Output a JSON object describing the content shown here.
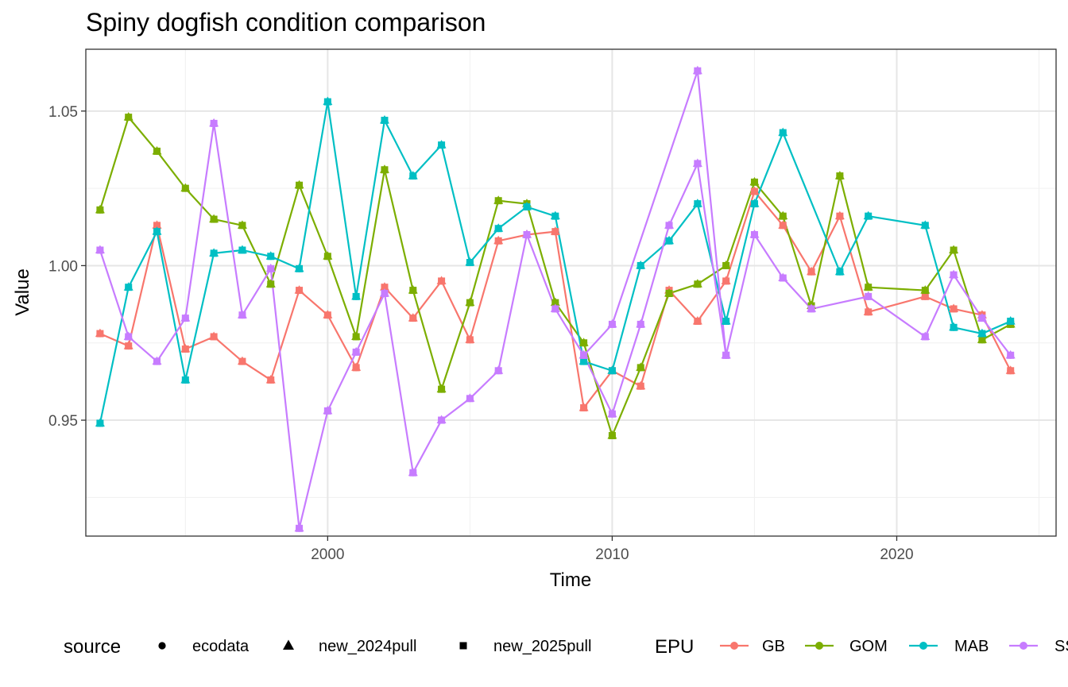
{
  "chart_data": {
    "type": "line",
    "title": "Spiny dogfish condition comparison",
    "xlabel": "Time",
    "ylabel": "Value",
    "xlim": [
      1991.5,
      2025.6
    ],
    "ylim": [
      0.9125,
      1.07
    ],
    "x_ticks": [
      2000,
      2010,
      2020
    ],
    "x_tick_labels": [
      "2000",
      "2010",
      "2020"
    ],
    "y_ticks": [
      0.95,
      1.0,
      1.05
    ],
    "y_tick_labels": [
      "0.95",
      "1.00",
      "1.05"
    ],
    "grid": true,
    "legend_position": "bottom",
    "shape_legend": {
      "title": "source",
      "entries": [
        {
          "label": "ecodata",
          "shape": "circle"
        },
        {
          "label": "new_2024pull",
          "shape": "triangle"
        },
        {
          "label": "new_2025pull",
          "shape": "square"
        }
      ]
    },
    "color_legend": {
      "title": "EPU",
      "entries": [
        {
          "label": "GB",
          "color": "#F8766D"
        },
        {
          "label": "GOM",
          "color": "#7CAE00"
        },
        {
          "label": "MAB",
          "color": "#00BFC4"
        },
        {
          "label": "SS",
          "color": "#C77CFF"
        }
      ]
    },
    "series": [
      {
        "epu": "GB",
        "color": "#F8766D",
        "x": [
          1992,
          1993,
          1994,
          1995,
          1996,
          1997,
          1998,
          1999,
          2000,
          2001,
          2002,
          2003,
          2004,
          2005,
          2006,
          2007,
          2008,
          2009,
          2010,
          2011,
          2012,
          2013,
          2014,
          2015,
          2016,
          2017,
          2018,
          2019,
          2021,
          2022,
          2023,
          2024
        ],
        "y": [
          0.978,
          0.974,
          1.013,
          0.973,
          0.977,
          0.969,
          0.963,
          0.992,
          0.984,
          0.967,
          0.993,
          0.983,
          0.995,
          0.976,
          1.008,
          1.01,
          1.011,
          0.954,
          0.966,
          0.961,
          0.992,
          0.982,
          0.995,
          1.024,
          1.013,
          0.998,
          1.016,
          0.985,
          0.99,
          0.986,
          0.984,
          0.966
        ]
      },
      {
        "epu": "GOM",
        "color": "#7CAE00",
        "x": [
          1992,
          1993,
          1994,
          1995,
          1996,
          1997,
          1998,
          1999,
          2000,
          2001,
          2002,
          2003,
          2004,
          2005,
          2006,
          2007,
          2008,
          2009,
          2010,
          2011,
          2012,
          2013,
          2014,
          2015,
          2016,
          2017,
          2018,
          2019,
          2021,
          2022,
          2023,
          2024
        ],
        "y": [
          1.018,
          1.048,
          1.037,
          1.025,
          1.015,
          1.013,
          0.994,
          1.026,
          1.003,
          0.977,
          1.031,
          0.992,
          0.96,
          0.988,
          1.021,
          1.02,
          0.988,
          0.975,
          0.945,
          0.967,
          0.991,
          0.994,
          1.0,
          1.027,
          1.016,
          0.987,
          1.029,
          0.993,
          0.992,
          1.005,
          0.976,
          0.981
        ]
      },
      {
        "epu": "MAB",
        "color": "#00BFC4",
        "x": [
          1992,
          1993,
          1994,
          1995,
          1996,
          1997,
          1998,
          1999,
          2000,
          2001,
          2002,
          2003,
          2004,
          2005,
          2006,
          2007,
          2008,
          2009,
          2010,
          2011,
          2012,
          2013,
          2014,
          2015,
          2016,
          2018,
          2019,
          2021,
          2022,
          2023,
          2024
        ],
        "y": [
          0.949,
          0.993,
          1.011,
          0.963,
          1.004,
          1.005,
          1.003,
          0.999,
          1.053,
          0.99,
          1.047,
          1.029,
          1.039,
          1.001,
          1.012,
          1.019,
          1.016,
          0.969,
          0.966,
          1.0,
          1.008,
          1.02,
          0.982,
          1.02,
          1.043,
          0.998,
          1.016,
          1.013,
          0.98,
          0.978,
          0.982
        ]
      },
      {
        "epu": "SS",
        "color": "#C77CFF",
        "x": [
          1992,
          1993,
          1994,
          1995,
          1996,
          1997,
          1998,
          1999,
          2000,
          2001,
          2002,
          2003,
          2004,
          2005,
          2006,
          2007,
          2008,
          2009,
          2010,
          2011,
          2012,
          2013,
          2014,
          2015,
          2016,
          2017,
          2019,
          2021,
          2022,
          2023,
          2024
        ],
        "y": [
          1.005,
          0.977,
          0.969,
          0.983,
          1.046,
          0.984,
          0.999,
          0.915,
          0.953,
          0.972,
          0.991,
          0.933,
          0.95,
          0.957,
          0.966,
          1.01,
          0.986,
          0.971,
          0.952,
          0.981,
          1.013,
          1.033,
          0.971,
          1.01,
          0.996,
          0.986,
          0.99,
          0.977,
          0.997,
          0.983,
          0.971
        ]
      },
      {
        "epu": "SS",
        "color": "#C77CFF",
        "x": [
          2009,
          2010,
          2013,
          2014
        ],
        "y": [
          0.971,
          0.981,
          1.063,
          0.971
        ]
      }
    ]
  }
}
